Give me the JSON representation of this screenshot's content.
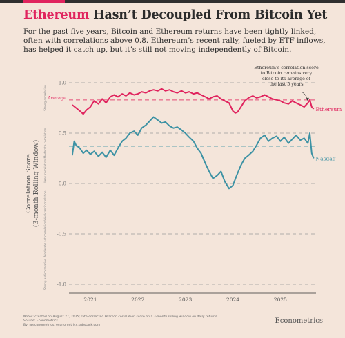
{
  "header": {
    "title_highlight": "Ethereum",
    "title_rest": " Hasn’t Decoupled From Bitcoin Yet",
    "subtitle": "For the past five years, Bitcoin and Ethereum returns have been tightly linked, often with correlations above 0.8. Ethereum’s recent rally, fueled by ETF inflows, has helped it catch up, but it’s still not moving independently of Bitcoin."
  },
  "colors": {
    "ethereum": "#e0245e",
    "nasdaq": "#3d92a4",
    "background": "#f4e5da"
  },
  "chart_data": {
    "type": "line",
    "title": "",
    "xlabel": "",
    "ylabel": "Correlation Score (3-month Rolling Window)",
    "ylim": [
      -1.0,
      1.0
    ],
    "xlim": [
      2020.55,
      2025.75
    ],
    "yticks": [
      1.0,
      0.5,
      0.0,
      -0.5,
      -1.0
    ],
    "ytick_labels": [
      "1.0",
      "0.5",
      "0.0",
      "-0.5",
      "-1.0"
    ],
    "x_ticks": [
      2021,
      2022,
      2023,
      2024,
      2025
    ],
    "x_tick_labels": [
      "2021",
      "2022",
      "2023",
      "2024",
      "2025"
    ],
    "band_labels": [
      {
        "label": "Strong correlation",
        "y": 0.85
      },
      {
        "label": "Moderate correlation",
        "y": 0.4
      },
      {
        "label": "Weak correlation",
        "y": 0.12
      },
      {
        "label": "Weak anticorrelation",
        "y": -0.22
      },
      {
        "label": "Moderate anticorrelation",
        "y": -0.55
      },
      {
        "label": "Strong anticorrelation",
        "y": -0.9
      }
    ],
    "averages": [
      {
        "name": "Average",
        "y": 0.83,
        "series": "Ethereum"
      },
      {
        "name": "",
        "y": 0.37,
        "series": "Nasdaq"
      }
    ],
    "series": [
      {
        "name": "Ethereum",
        "label_y": 0.74,
        "points": [
          [
            2020.62,
            0.78
          ],
          [
            2020.7,
            0.75
          ],
          [
            2020.78,
            0.72
          ],
          [
            2020.85,
            0.69
          ],
          [
            2020.92,
            0.73
          ],
          [
            2021.0,
            0.76
          ],
          [
            2021.08,
            0.82
          ],
          [
            2021.17,
            0.79
          ],
          [
            2021.25,
            0.84
          ],
          [
            2021.33,
            0.8
          ],
          [
            2021.42,
            0.86
          ],
          [
            2021.5,
            0.88
          ],
          [
            2021.58,
            0.86
          ],
          [
            2021.67,
            0.89
          ],
          [
            2021.75,
            0.87
          ],
          [
            2021.83,
            0.9
          ],
          [
            2021.92,
            0.88
          ],
          [
            2022.0,
            0.89
          ],
          [
            2022.08,
            0.91
          ],
          [
            2022.17,
            0.9
          ],
          [
            2022.25,
            0.92
          ],
          [
            2022.33,
            0.93
          ],
          [
            2022.42,
            0.92
          ],
          [
            2022.5,
            0.94
          ],
          [
            2022.58,
            0.92
          ],
          [
            2022.67,
            0.93
          ],
          [
            2022.75,
            0.91
          ],
          [
            2022.83,
            0.9
          ],
          [
            2022.92,
            0.92
          ],
          [
            2023.0,
            0.9
          ],
          [
            2023.08,
            0.91
          ],
          [
            2023.17,
            0.89
          ],
          [
            2023.25,
            0.9
          ],
          [
            2023.33,
            0.88
          ],
          [
            2023.42,
            0.86
          ],
          [
            2023.5,
            0.84
          ],
          [
            2023.58,
            0.86
          ],
          [
            2023.67,
            0.87
          ],
          [
            2023.75,
            0.84
          ],
          [
            2023.83,
            0.82
          ],
          [
            2023.92,
            0.8
          ],
          [
            2024.0,
            0.72
          ],
          [
            2024.05,
            0.7
          ],
          [
            2024.1,
            0.71
          ],
          [
            2024.17,
            0.76
          ],
          [
            2024.25,
            0.82
          ],
          [
            2024.33,
            0.85
          ],
          [
            2024.42,
            0.87
          ],
          [
            2024.5,
            0.85
          ],
          [
            2024.58,
            0.86
          ],
          [
            2024.67,
            0.88
          ],
          [
            2024.75,
            0.86
          ],
          [
            2024.83,
            0.84
          ],
          [
            2024.92,
            0.83
          ],
          [
            2025.0,
            0.82
          ],
          [
            2025.08,
            0.8
          ],
          [
            2025.17,
            0.79
          ],
          [
            2025.25,
            0.82
          ],
          [
            2025.33,
            0.8
          ],
          [
            2025.42,
            0.78
          ],
          [
            2025.5,
            0.76
          ],
          [
            2025.58,
            0.8
          ],
          [
            2025.62,
            0.83
          ],
          [
            2025.66,
            0.76
          ],
          [
            2025.7,
            0.74
          ]
        ]
      },
      {
        "name": "Nasdaq",
        "label_y": 0.25,
        "points": [
          [
            2020.62,
            0.28
          ],
          [
            2020.66,
            0.42
          ],
          [
            2020.7,
            0.38
          ],
          [
            2020.78,
            0.35
          ],
          [
            2020.85,
            0.3
          ],
          [
            2020.92,
            0.33
          ],
          [
            2021.0,
            0.29
          ],
          [
            2021.08,
            0.32
          ],
          [
            2021.17,
            0.27
          ],
          [
            2021.25,
            0.31
          ],
          [
            2021.33,
            0.26
          ],
          [
            2021.42,
            0.33
          ],
          [
            2021.5,
            0.28
          ],
          [
            2021.58,
            0.35
          ],
          [
            2021.67,
            0.42
          ],
          [
            2021.75,
            0.45
          ],
          [
            2021.83,
            0.5
          ],
          [
            2021.92,
            0.52
          ],
          [
            2022.0,
            0.48
          ],
          [
            2022.08,
            0.55
          ],
          [
            2022.17,
            0.58
          ],
          [
            2022.25,
            0.62
          ],
          [
            2022.33,
            0.66
          ],
          [
            2022.42,
            0.63
          ],
          [
            2022.5,
            0.6
          ],
          [
            2022.58,
            0.61
          ],
          [
            2022.67,
            0.57
          ],
          [
            2022.75,
            0.55
          ],
          [
            2022.83,
            0.56
          ],
          [
            2022.92,
            0.53
          ],
          [
            2023.0,
            0.5
          ],
          [
            2023.08,
            0.46
          ],
          [
            2023.17,
            0.42
          ],
          [
            2023.25,
            0.35
          ],
          [
            2023.33,
            0.3
          ],
          [
            2023.42,
            0.2
          ],
          [
            2023.5,
            0.12
          ],
          [
            2023.58,
            0.05
          ],
          [
            2023.67,
            0.08
          ],
          [
            2023.75,
            0.12
          ],
          [
            2023.83,
            0.02
          ],
          [
            2023.92,
            -0.05
          ],
          [
            2024.0,
            -0.02
          ],
          [
            2024.08,
            0.08
          ],
          [
            2024.17,
            0.18
          ],
          [
            2024.25,
            0.25
          ],
          [
            2024.33,
            0.28
          ],
          [
            2024.42,
            0.32
          ],
          [
            2024.5,
            0.38
          ],
          [
            2024.58,
            0.45
          ],
          [
            2024.67,
            0.48
          ],
          [
            2024.75,
            0.42
          ],
          [
            2024.83,
            0.45
          ],
          [
            2024.92,
            0.47
          ],
          [
            2025.0,
            0.42
          ],
          [
            2025.08,
            0.46
          ],
          [
            2025.17,
            0.4
          ],
          [
            2025.25,
            0.44
          ],
          [
            2025.33,
            0.48
          ],
          [
            2025.42,
            0.43
          ],
          [
            2025.5,
            0.45
          ],
          [
            2025.58,
            0.4
          ],
          [
            2025.62,
            0.5
          ],
          [
            2025.66,
            0.3
          ],
          [
            2025.7,
            0.25
          ]
        ]
      }
    ],
    "annotation": {
      "text": [
        "Ethereum’s correlation score",
        "to Bitcoin remains very",
        "close to its average of",
        "the last 5 years"
      ]
    }
  },
  "footer": {
    "notes": [
      "Notes: created on August 27, 2025; rate-corrected Pearson correlation score on a 3-month rolling window on daily returns",
      "Source: Econometrics",
      "By: @econometrics, econometrics.substack.com"
    ],
    "brand": "Econometrics"
  }
}
